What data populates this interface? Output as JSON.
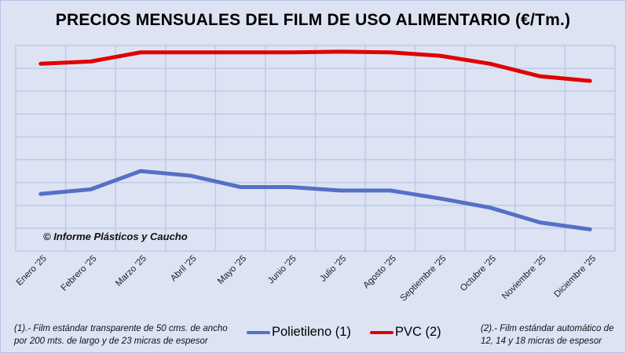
{
  "chart_data": {
    "type": "line",
    "title": "PRECIOS MENSUALES DEL FILM DE USO ALIMENTARIO (€/Tm.)",
    "xlabel": "",
    "ylabel": "",
    "y_axis_note": "No y-axis tick labels shown; values in gridline units (0 = bottom gridline, 9 = top gridline)",
    "ylim": [
      0,
      9
    ],
    "grid": true,
    "legend_position": "bottom",
    "categories": [
      "Enero '25",
      "Febrero '25",
      "Marzo '25",
      "Abril '25",
      "Mayo '25",
      "Junio '25",
      "Julio '25",
      "Agosto '25",
      "Septiembre '25",
      "Octubre '25",
      "Noviembre '25",
      "Diciembre '25"
    ],
    "series": [
      {
        "name": "Polietileno (1)",
        "color": "#5470c6",
        "values": [
          2.5,
          2.7,
          3.5,
          3.3,
          2.8,
          2.8,
          2.65,
          2.65,
          2.3,
          1.9,
          1.25,
          0.95
        ]
      },
      {
        "name": "PVC (2)",
        "color": "#e00000",
        "values": [
          8.2,
          8.3,
          8.7,
          8.7,
          8.7,
          8.7,
          8.73,
          8.7,
          8.55,
          8.2,
          7.65,
          7.45
        ]
      }
    ],
    "annotations": {
      "copyright": "© Informe Plásticos y Caucho",
      "note1": "(1).- Film estándar transparente de 50 cms. de ancho por 200 mts. de largo y de 23 micras de espesor",
      "note1_lines": [
        "(1).- Film estándar transparente de 50 cms. de ancho",
        "por 200 mts. de largo y de 23 micras de espesor"
      ],
      "note2": "(2).- Film estándar automático de 12, 14 y 18 micras de espesor",
      "note2_lines": [
        "(2).- Film estándar automático de",
        "12, 14 y 18 micras de espesor"
      ]
    }
  }
}
